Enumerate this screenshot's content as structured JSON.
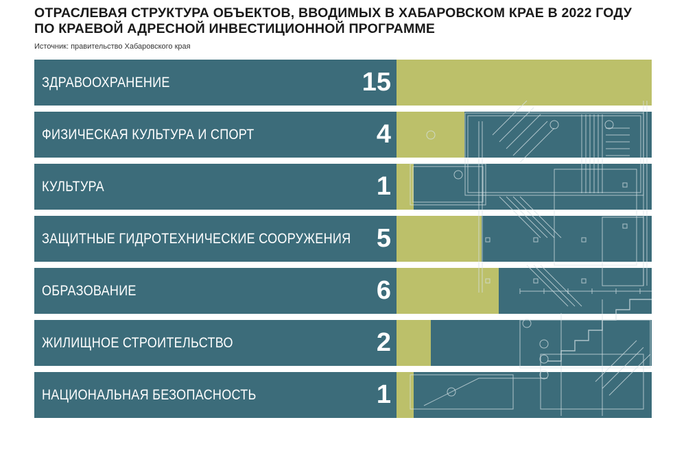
{
  "header": {
    "title": "ОТРАСЛЕВАЯ СТРУКТУРА ОБЪЕКТОВ, ВВОДИМЫХ В ХАБАРОВСКОМ КРАЕ В 2022 ГОДУ ПО КРАЕВОЙ АДРЕСНОЙ ИНВЕСТИЦИОННОЙ ПРОГРАММЕ",
    "source": "Источник: правительство Хабаровского края"
  },
  "colors": {
    "row_background": "#3c6c7a",
    "bar": "#bcc06a",
    "blueprint_lines": "#d6e2e6"
  },
  "chart_data": {
    "type": "bar",
    "orientation": "horizontal",
    "categories": [
      "ЗДРАВООХРАНЕНИЕ",
      "ФИЗИЧЕСКАЯ КУЛЬТУРА И СПОРТ",
      "КУЛЬТУРА",
      "ЗАЩИТНЫЕ ГИДРОТЕХНИЧЕСКИЕ СООРУЖЕНИЯ",
      "ОБРАЗОВАНИЕ",
      "ЖИЛИЩНОЕ СТРОИТЕЛЬСТВО",
      "НАЦИОНАЛЬНАЯ БЕЗОПАСНОСТЬ"
    ],
    "values": [
      15,
      4,
      1,
      5,
      6,
      2,
      1
    ],
    "xlim": [
      0,
      15
    ],
    "grid": false,
    "legend": "none"
  },
  "decor": {
    "blueprint_icon": "architectural-floor-plan"
  }
}
